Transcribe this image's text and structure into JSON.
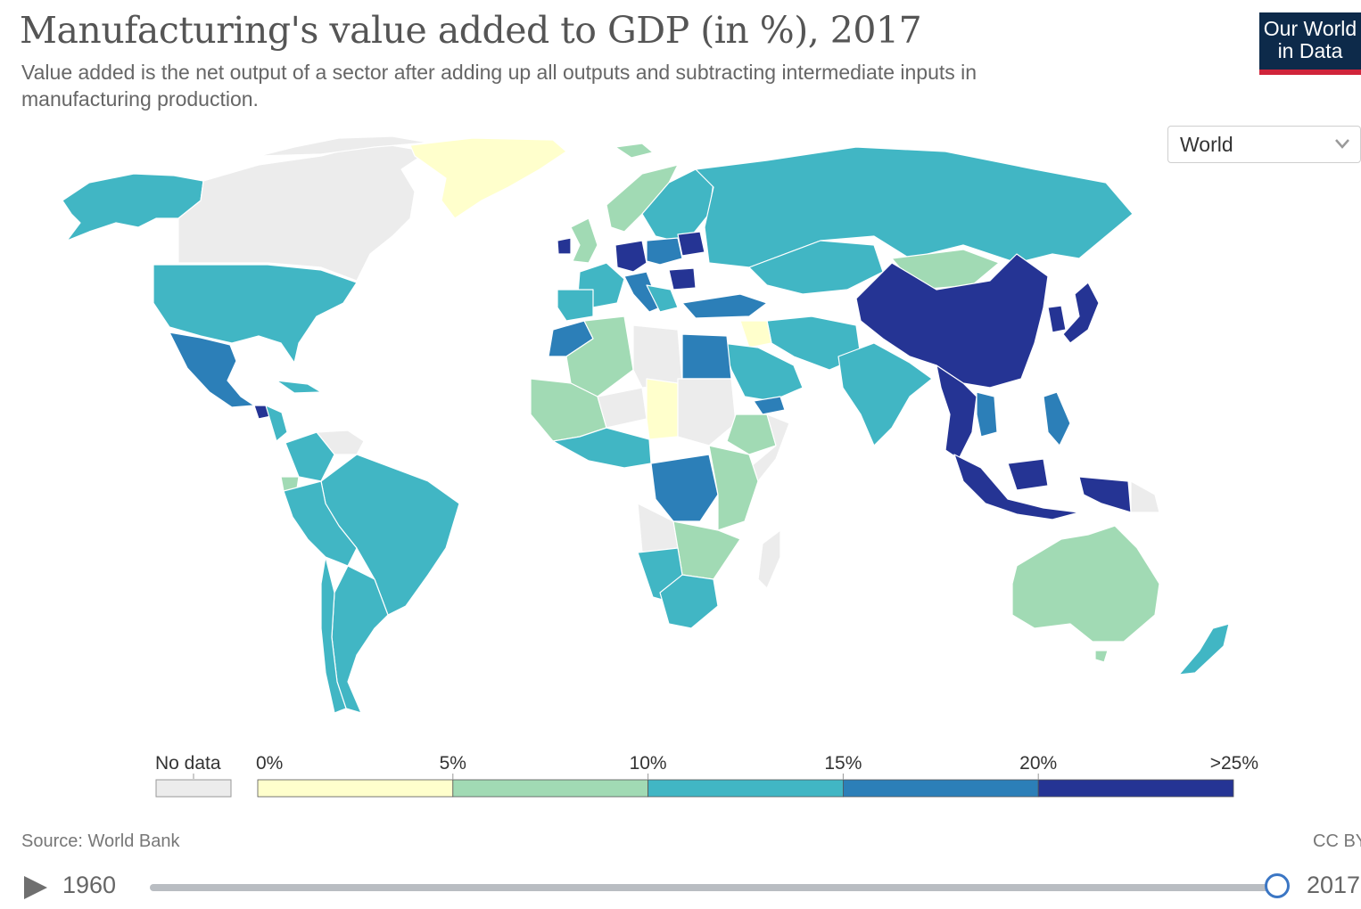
{
  "header": {
    "title": "Manufacturing's value added to GDP (in %), 2017",
    "subtitle": "Value added is the net output of a sector after adding up all outputs and subtracting intermediate inputs in manufacturing production.",
    "logo_line1": "Our World",
    "logo_line2": "in Data"
  },
  "region_select": {
    "value": "World"
  },
  "legend": {
    "no_data_label": "No data",
    "bins": [
      {
        "label_start": "0%",
        "color": "#ffffcc"
      },
      {
        "label_start": "5%",
        "color": "#a1dab4"
      },
      {
        "label_start": "10%",
        "color": "#41b6c4"
      },
      {
        "label_start": "15%",
        "color": "#2c7fb8"
      },
      {
        "label_start": "20%",
        "color": "#253494"
      }
    ],
    "end_label": ">25%",
    "no_data_color": "#ececec"
  },
  "chart_data": {
    "type": "map",
    "year": 2017,
    "region": "World",
    "units": "%",
    "bins": [
      0,
      5,
      10,
      15,
      20,
      25
    ],
    "regions": [
      {
        "name": "Greenland",
        "bin": "0-5"
      },
      {
        "name": "Canada",
        "bin": "No data"
      },
      {
        "name": "Alaska (United States)",
        "bin": "10-15"
      },
      {
        "name": "United States",
        "bin": "10-15"
      },
      {
        "name": "Mexico",
        "bin": "15-20"
      },
      {
        "name": "Guatemala",
        "bin": "15-20"
      },
      {
        "name": "Brazil",
        "bin": "10-15"
      },
      {
        "name": "Argentina",
        "bin": "10-15"
      },
      {
        "name": "Chile",
        "bin": "10-15"
      },
      {
        "name": "Venezuela",
        "bin": "No data"
      },
      {
        "name": "Ecuador",
        "bin": "5-10"
      },
      {
        "name": "Russia",
        "bin": "10-15"
      },
      {
        "name": "China",
        "bin": ">25"
      },
      {
        "name": "Japan",
        "bin": ">25"
      },
      {
        "name": "South Korea",
        "bin": ">25"
      },
      {
        "name": "Thailand",
        "bin": ">25"
      },
      {
        "name": "Indonesia",
        "bin": "20-25"
      },
      {
        "name": "Malaysia",
        "bin": "20-25"
      },
      {
        "name": "Philippines",
        "bin": "15-20"
      },
      {
        "name": "Vietnam",
        "bin": "15-20"
      },
      {
        "name": "India",
        "bin": "10-15"
      },
      {
        "name": "Kazakhstan",
        "bin": "10-15"
      },
      {
        "name": "Mongolia",
        "bin": "5-10"
      },
      {
        "name": "Iran",
        "bin": "10-15"
      },
      {
        "name": "Saudi Arabia",
        "bin": "10-15"
      },
      {
        "name": "Turkey",
        "bin": "15-20"
      },
      {
        "name": "Iraq",
        "bin": "0-5"
      },
      {
        "name": "Egypt",
        "bin": "15-20"
      },
      {
        "name": "Libya",
        "bin": "No data"
      },
      {
        "name": "Algeria",
        "bin": "5-10"
      },
      {
        "name": "Morocco",
        "bin": "15-20"
      },
      {
        "name": "Mali",
        "bin": "5-10"
      },
      {
        "name": "Niger",
        "bin": "No data"
      },
      {
        "name": "Chad",
        "bin": "0-5"
      },
      {
        "name": "Sudan",
        "bin": "No data"
      },
      {
        "name": "Ethiopia",
        "bin": "5-10"
      },
      {
        "name": "Somalia",
        "bin": "No data"
      },
      {
        "name": "DR Congo",
        "bin": "15-20"
      },
      {
        "name": "Angola",
        "bin": "No data"
      },
      {
        "name": "Namibia",
        "bin": "10-15"
      },
      {
        "name": "South Africa",
        "bin": "10-15"
      },
      {
        "name": "Madagascar",
        "bin": "No data"
      },
      {
        "name": "Germany",
        "bin": "20-25"
      },
      {
        "name": "Czechia",
        "bin": "20-25"
      },
      {
        "name": "Ireland",
        "bin": "20-25"
      },
      {
        "name": "Belarus",
        "bin": "20-25"
      },
      {
        "name": "Romania",
        "bin": "20-25"
      },
      {
        "name": "Poland",
        "bin": "15-20"
      },
      {
        "name": "France",
        "bin": "10-15"
      },
      {
        "name": "Spain",
        "bin": "10-15"
      },
      {
        "name": "United Kingdom",
        "bin": "5-10"
      },
      {
        "name": "Norway",
        "bin": "5-10"
      },
      {
        "name": "Sweden",
        "bin": "10-15"
      },
      {
        "name": "Finland",
        "bin": "10-15"
      },
      {
        "name": "Australia",
        "bin": "5-10"
      },
      {
        "name": "New Zealand",
        "bin": "10-15"
      },
      {
        "name": "Papua New Guinea",
        "bin": "No data"
      }
    ]
  },
  "footer": {
    "source": "Source: World Bank",
    "license": "CC BY"
  },
  "timeline": {
    "start_year": "1960",
    "end_year": "2017",
    "position": 1.0
  }
}
